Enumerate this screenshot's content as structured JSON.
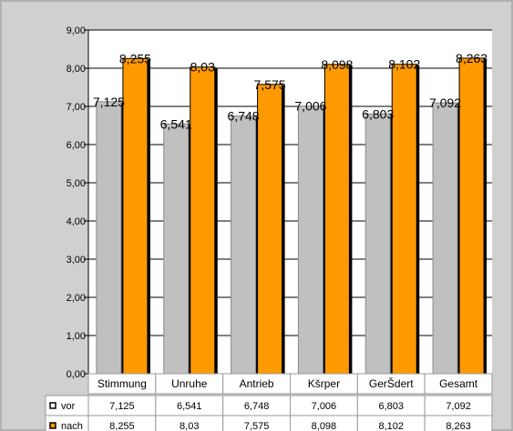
{
  "chart_data": {
    "type": "bar",
    "categories": [
      "Stimmung",
      "Unruhe",
      "Antrieb",
      "Kšrper",
      "GerŠdert",
      "Gesamt"
    ],
    "series": [
      {
        "name": "vor",
        "values": [
          7.125,
          6.541,
          6.748,
          7.006,
          6.803,
          7.092
        ],
        "labels": [
          "7,125",
          "6,541",
          "6,748",
          "7,006",
          "6,803",
          "7,092"
        ],
        "color": "#c0c0c0",
        "marker": "□"
      },
      {
        "name": "nach",
        "values": [
          8.255,
          8.03,
          7.575,
          8.098,
          8.102,
          8.263
        ],
        "labels": [
          "8,255",
          "8,03",
          "7,575",
          "8,098",
          "8,102",
          "8,263"
        ],
        "color": "#ff9900",
        "marker": "■"
      }
    ],
    "ylim": [
      0,
      9
    ],
    "yticks": [
      "0,00",
      "1,00",
      "2,00",
      "3,00",
      "4,00",
      "5,00",
      "6,00",
      "7,00",
      "8,00",
      "9,00"
    ],
    "grid": true,
    "legend": "data-table"
  },
  "colors": {
    "background": "#d0d0d0",
    "plot_area": "#ffffff",
    "table": "#ffffff"
  }
}
